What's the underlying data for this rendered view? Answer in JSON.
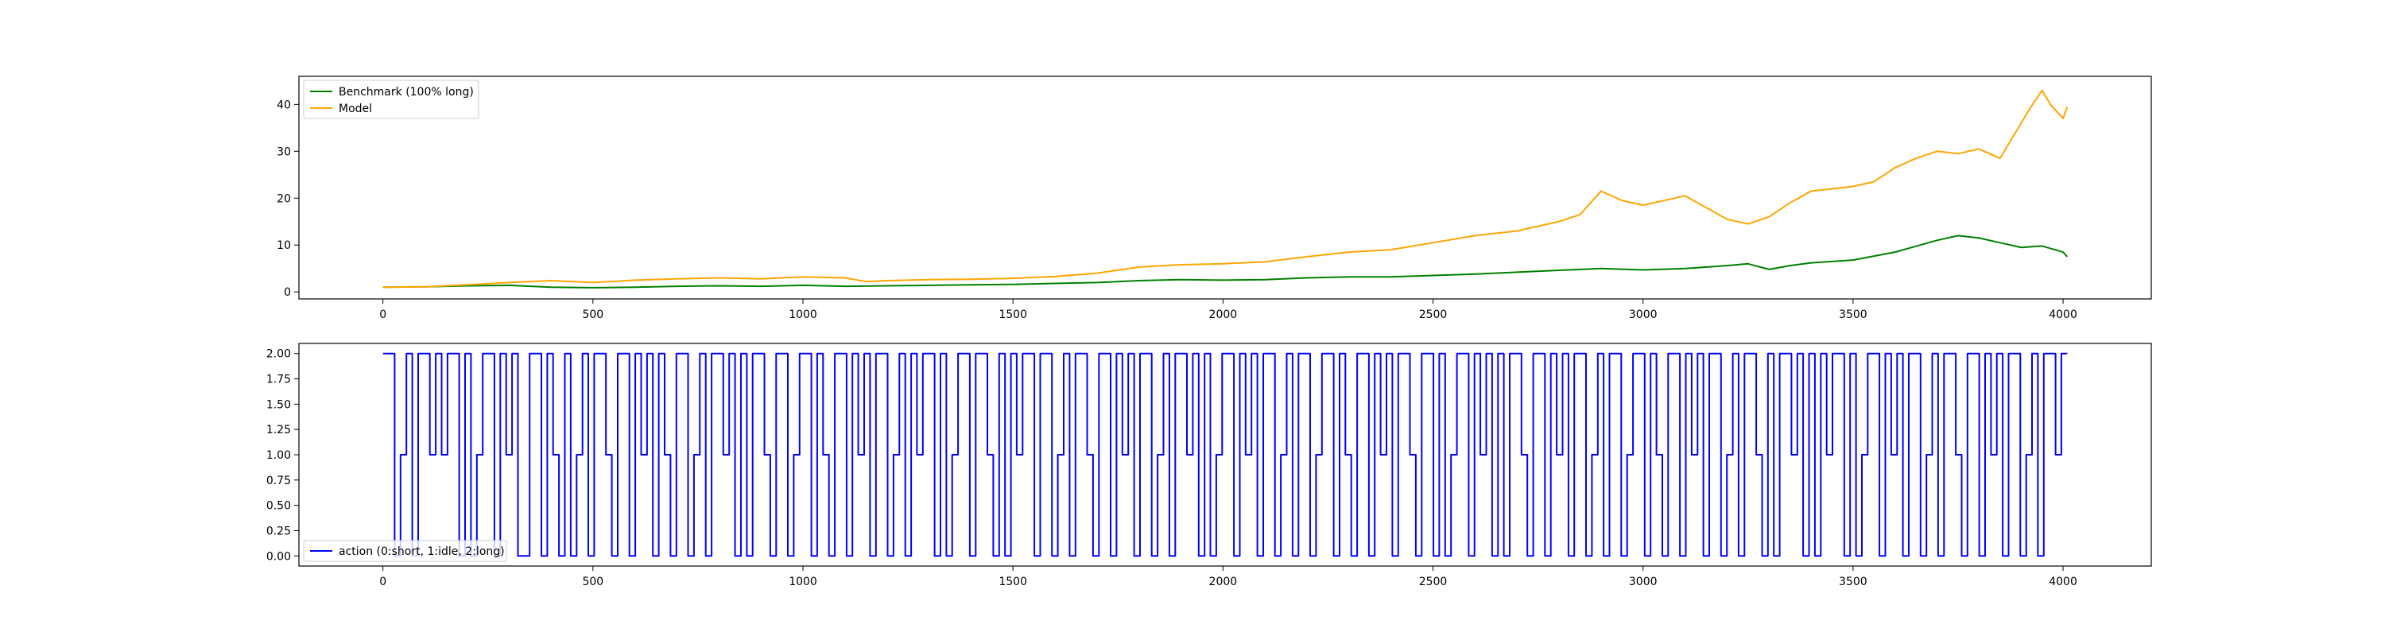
{
  "chart_data": [
    {
      "type": "line",
      "title": "",
      "xlabel": "",
      "ylabel": "",
      "xlim": [
        -200,
        4210
      ],
      "ylim": [
        -1.5,
        46
      ],
      "xticks": [
        0,
        500,
        1000,
        1500,
        2000,
        2500,
        3000,
        3500,
        4000
      ],
      "yticks": [
        0,
        10,
        20,
        30,
        40
      ],
      "x_tick_labels": [
        "0",
        "500",
        "1000",
        "1500",
        "2000",
        "2500",
        "3000",
        "3500",
        "4000"
      ],
      "y_tick_labels": [
        "0",
        "10",
        "20",
        "30",
        "40"
      ],
      "grid": false,
      "legend_position": "upper-left",
      "series": [
        {
          "name": "Benchmark (100% long)",
          "color": "#008000",
          "x": [
            0,
            100,
            200,
            300,
            400,
            500,
            600,
            700,
            800,
            900,
            1000,
            1100,
            1200,
            1300,
            1400,
            1500,
            1600,
            1700,
            1800,
            1900,
            2000,
            2100,
            2200,
            2300,
            2400,
            2500,
            2600,
            2700,
            2800,
            2900,
            3000,
            3100,
            3200,
            3250,
            3300,
            3350,
            3400,
            3500,
            3600,
            3700,
            3750,
            3800,
            3850,
            3900,
            3950,
            4000,
            4010
          ],
          "y": [
            1.0,
            1.1,
            1.3,
            1.4,
            1.0,
            0.9,
            1.0,
            1.2,
            1.3,
            1.2,
            1.4,
            1.2,
            1.3,
            1.4,
            1.5,
            1.6,
            1.8,
            2.0,
            2.4,
            2.6,
            2.5,
            2.6,
            3.0,
            3.2,
            3.2,
            3.5,
            3.8,
            4.2,
            4.6,
            5.0,
            4.7,
            5.0,
            5.6,
            6.0,
            4.8,
            5.6,
            6.2,
            6.8,
            8.5,
            11.0,
            12.0,
            11.5,
            10.5,
            9.5,
            9.8,
            8.5,
            7.5
          ]
        },
        {
          "name": "Model",
          "color": "#FFA500",
          "x": [
            0,
            100,
            200,
            300,
            400,
            500,
            600,
            700,
            800,
            900,
            1000,
            1100,
            1150,
            1200,
            1300,
            1400,
            1500,
            1600,
            1700,
            1800,
            1900,
            2000,
            2100,
            2200,
            2300,
            2400,
            2500,
            2600,
            2700,
            2800,
            2850,
            2900,
            2950,
            3000,
            3050,
            3100,
            3150,
            3200,
            3250,
            3300,
            3350,
            3400,
            3450,
            3500,
            3550,
            3600,
            3650,
            3700,
            3750,
            3800,
            3850,
            3900,
            3920,
            3950,
            3970,
            4000,
            4010
          ],
          "y": [
            1.0,
            1.1,
            1.5,
            2.0,
            2.4,
            2.0,
            2.5,
            2.8,
            3.0,
            2.8,
            3.2,
            3.0,
            2.2,
            2.4,
            2.6,
            2.7,
            2.9,
            3.3,
            4.0,
            5.3,
            5.8,
            6.0,
            6.4,
            7.5,
            8.5,
            9.0,
            10.5,
            12.0,
            13.0,
            15.0,
            16.5,
            21.5,
            19.5,
            18.5,
            19.5,
            20.5,
            18.0,
            15.5,
            14.5,
            16.0,
            19.0,
            21.5,
            22.0,
            22.5,
            23.5,
            26.5,
            28.5,
            30.0,
            29.5,
            30.5,
            28.5,
            36.0,
            39.0,
            43.0,
            40.0,
            37.0,
            39.5
          ]
        }
      ]
    },
    {
      "type": "line",
      "title": "",
      "xlabel": "",
      "ylabel": "",
      "xlim": [
        -200,
        4210
      ],
      "ylim": [
        -0.1,
        2.1
      ],
      "xticks": [
        0,
        500,
        1000,
        1500,
        2000,
        2500,
        3000,
        3500,
        4000
      ],
      "yticks": [
        0.0,
        0.25,
        0.5,
        0.75,
        1.0,
        1.25,
        1.5,
        1.75,
        2.0
      ],
      "x_tick_labels": [
        "0",
        "500",
        "1000",
        "1500",
        "2000",
        "2500",
        "3000",
        "3500",
        "4000"
      ],
      "y_tick_labels": [
        "0.00",
        "0.25",
        "0.50",
        "0.75",
        "1.00",
        "1.25",
        "1.50",
        "1.75",
        "2.00"
      ],
      "grid": false,
      "legend_position": "lower-left",
      "drawstyle": "steps",
      "series": [
        {
          "name": "action (0:short, 1:idle, 2:long)",
          "color": "#0000FF",
          "x_start": 0,
          "x_end": 4010,
          "values": [
            2,
            2,
            0,
            1,
            2,
            0,
            2,
            2,
            1,
            2,
            1,
            2,
            2,
            0,
            2,
            0,
            1,
            2,
            2,
            0,
            2,
            1,
            2,
            0,
            0,
            2,
            2,
            0,
            2,
            1,
            0,
            2,
            0,
            1,
            2,
            0,
            2,
            2,
            1,
            0,
            2,
            2,
            0,
            2,
            1,
            2,
            0,
            2,
            1,
            0,
            2,
            2,
            0,
            1,
            2,
            0,
            2,
            2,
            1,
            2,
            0,
            2,
            0,
            2,
            2,
            1,
            0,
            2,
            2,
            0,
            1,
            2,
            2,
            0,
            2,
            1,
            0,
            2,
            2,
            0,
            2,
            1,
            2,
            0,
            2,
            2,
            0,
            1,
            2,
            0,
            2,
            1,
            2,
            2,
            0,
            2,
            0,
            1,
            2,
            2,
            0,
            2,
            2,
            1,
            0,
            2,
            0,
            2,
            1,
            2,
            2,
            0,
            2,
            2,
            0,
            1,
            2,
            0,
            2,
            2,
            1,
            0,
            2,
            2,
            0,
            2,
            1,
            2,
            0,
            2,
            2,
            0,
            1,
            2,
            0,
            2,
            2,
            1,
            2,
            0,
            2,
            0,
            1,
            2,
            2,
            0,
            2,
            1,
            2,
            0,
            2,
            2,
            0,
            1,
            2,
            0,
            2,
            2,
            0,
            1,
            2,
            2,
            0,
            2,
            1,
            0,
            2,
            2,
            0,
            2,
            1,
            2,
            0,
            2,
            2,
            1,
            0,
            2,
            2,
            0,
            2,
            0,
            1,
            2,
            2,
            0,
            2,
            1,
            2,
            0,
            2,
            0,
            2,
            2,
            1,
            0,
            2,
            2,
            0,
            2,
            1,
            2,
            0,
            2,
            2,
            0,
            1,
            2,
            0,
            2,
            2,
            0,
            1,
            2,
            2,
            0,
            2,
            1,
            0,
            2,
            2,
            0,
            2,
            1,
            2,
            0,
            2,
            2,
            0,
            1,
            2,
            0,
            2,
            2,
            1,
            0,
            2,
            0,
            2,
            2,
            1,
            2,
            0,
            2,
            0,
            2,
            1,
            2,
            2,
            0,
            2,
            0,
            1,
            2,
            2,
            0,
            2,
            1,
            2,
            0,
            2,
            2,
            0,
            1,
            2,
            0,
            2,
            2,
            1,
            0,
            2,
            2,
            0,
            2,
            1,
            2,
            0,
            2,
            2,
            0,
            1,
            2,
            0,
            2,
            2,
            1,
            2
          ]
        }
      ]
    }
  ]
}
